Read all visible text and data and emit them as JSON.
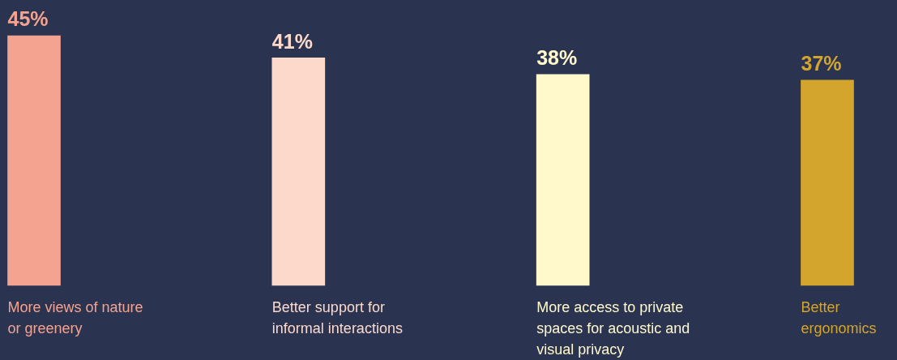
{
  "chart_data": {
    "type": "bar",
    "categories": [
      "More views of nature\nor greenery",
      "Better support for\ninformal interactions",
      "More access to private\nspaces for acoustic and\nvisual privacy",
      "Better\nergonomics"
    ],
    "values": [
      45,
      41,
      38,
      37
    ],
    "colors": [
      "#f4a390",
      "#fdd9cc",
      "#fff9cc",
      "#d4a52c"
    ],
    "value_labels": [
      "45%",
      "41%",
      "38%",
      "37%"
    ],
    "legend": false
  }
}
